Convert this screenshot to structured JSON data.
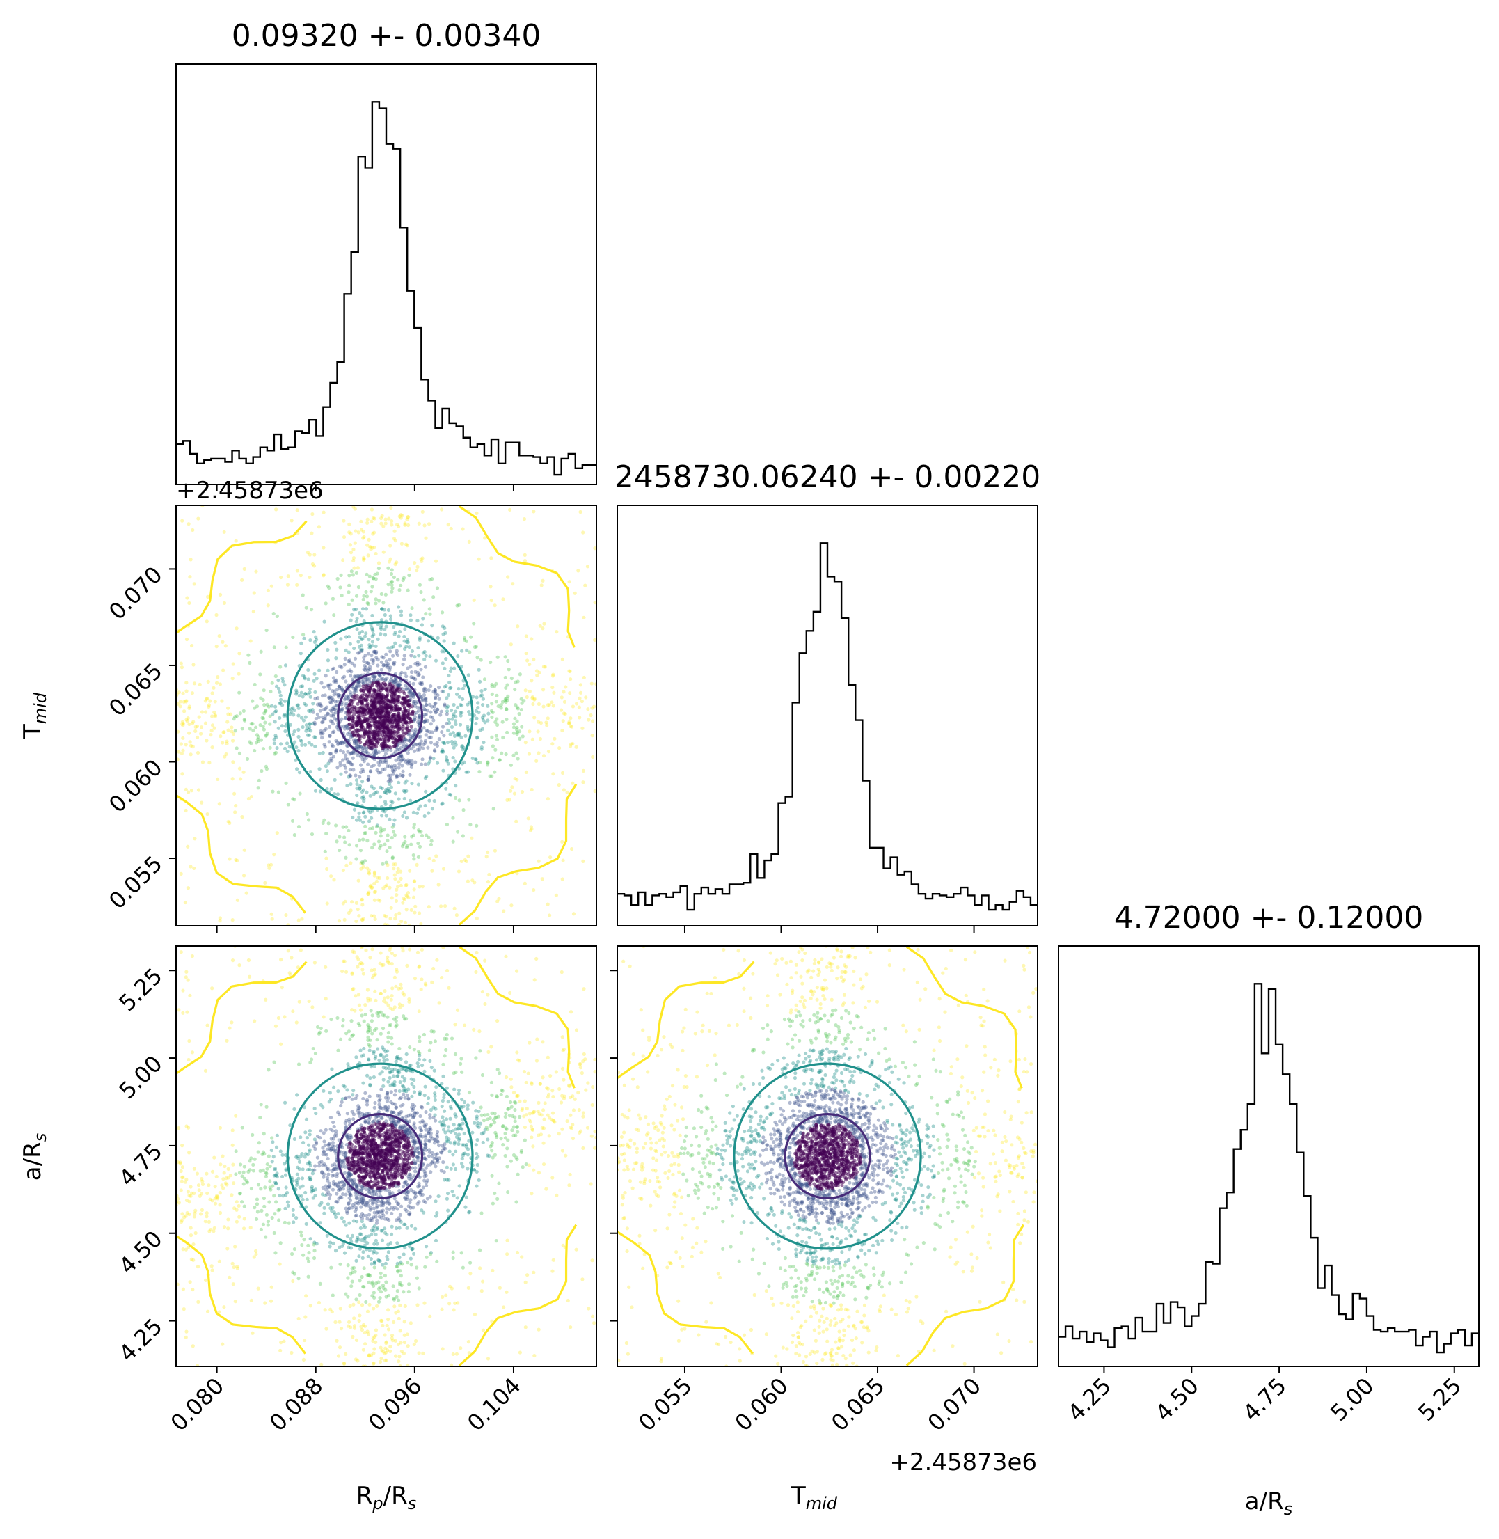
{
  "chart_data": {
    "type": "corner",
    "parameters": [
      {
        "key": "rp",
        "label_main": "R",
        "label_sub1": "p",
        "label_mid": "/R",
        "label_sub2": "s",
        "title": "0.09320 +- 0.00340",
        "median": 0.0932,
        "sigma": 0.0034,
        "range": [
          0.0767,
          0.1107
        ],
        "ticks": [
          "0.080",
          "0.088",
          "0.096",
          "0.104"
        ],
        "offset": ""
      },
      {
        "key": "tmid",
        "label_main": "T",
        "label_sub1": "mid",
        "label_mid": "",
        "label_sub2": "",
        "title": "2458730.06240 +- 0.00220",
        "median": 0.0624,
        "sigma": 0.0022,
        "range": [
          0.0515,
          0.0733
        ],
        "ticks": [
          "0.055",
          "0.060",
          "0.065",
          "0.070"
        ],
        "offset": "+2.45873e6"
      },
      {
        "key": "ars",
        "label_main": "a/R",
        "label_sub1": "s",
        "label_mid": "",
        "label_sub2": "",
        "title": "4.72000 +- 0.12000",
        "median": 4.72,
        "sigma": 0.12,
        "range": [
          4.12,
          5.32
        ],
        "ticks": [
          "4.25",
          "4.50",
          "4.75",
          "5.00",
          "5.25"
        ],
        "offset": ""
      }
    ],
    "colors": {
      "inner_contour": "#472c7a",
      "middle_contour": "#21918c",
      "outer_contour": "#fde725",
      "point_scale": [
        "#440154",
        "#3b528b",
        "#21918c",
        "#5ec962",
        "#fde725"
      ]
    }
  }
}
